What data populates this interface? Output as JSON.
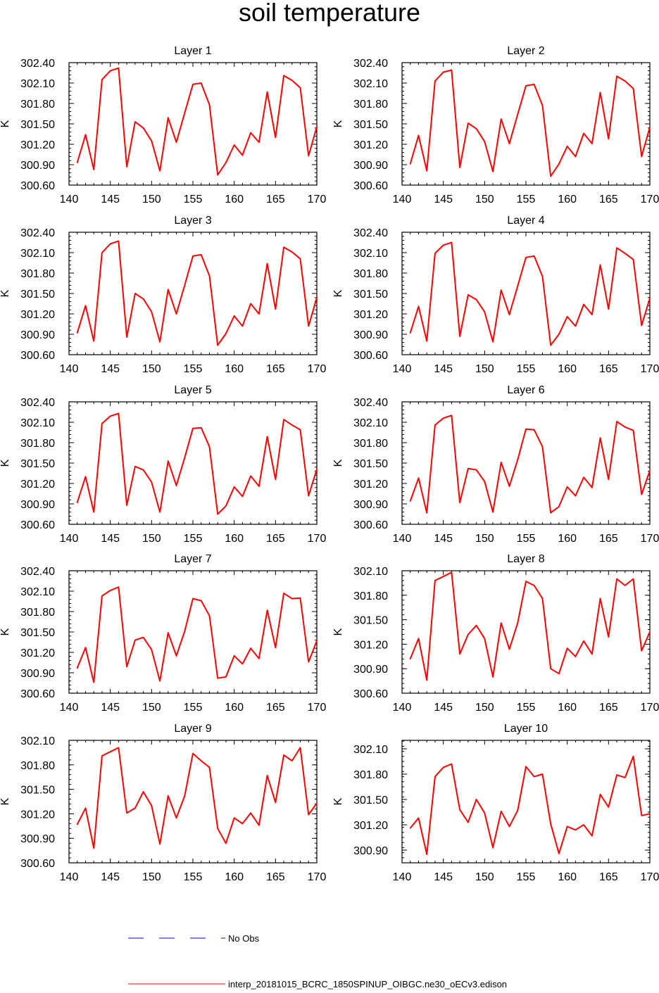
{
  "title": "soil temperature",
  "legend": {
    "no_obs_label": "No Obs",
    "model_label": "interp_20181015_BCRC_1850SPINUP_OIBGC.ne30_oECv3.edison"
  },
  "colors": {
    "model_line": "#ff0000",
    "obs_line": "#0000ff",
    "axes": "#000000"
  },
  "chart_data": [
    {
      "type": "line",
      "title": "Layer 1",
      "ylabel": "K",
      "xlim": [
        140,
        170
      ],
      "ylim": [
        300.6,
        302.4
      ],
      "xticks": [
        "140",
        "145",
        "150",
        "155",
        "160",
        "165",
        "170"
      ],
      "yticks": [
        "300.60",
        "300.90",
        "301.20",
        "301.50",
        "301.80",
        "302.10",
        "302.40"
      ],
      "series": [
        {
          "x": [
            141,
            142,
            143,
            144,
            145,
            146,
            147,
            148,
            149,
            150,
            151,
            152,
            153,
            154,
            155,
            156,
            157,
            158,
            159,
            160,
            161,
            162,
            163,
            164,
            165,
            166,
            167,
            168,
            169,
            170
          ],
          "values": [
            300.93,
            301.34,
            300.83,
            302.15,
            302.28,
            302.32,
            300.87,
            301.53,
            301.44,
            301.25,
            300.81,
            301.59,
            301.23,
            301.66,
            302.08,
            302.1,
            301.78,
            300.75,
            300.93,
            301.19,
            301.04,
            301.37,
            301.23,
            301.97,
            301.3,
            302.21,
            302.14,
            302.03,
            301.03,
            301.46
          ]
        }
      ]
    },
    {
      "type": "line",
      "title": "Layer 2",
      "ylabel": "K",
      "xlim": [
        140,
        170
      ],
      "ylim": [
        300.6,
        302.4
      ],
      "xticks": [
        "140",
        "145",
        "150",
        "155",
        "160",
        "165",
        "170"
      ],
      "yticks": [
        "300.60",
        "300.90",
        "301.20",
        "301.50",
        "301.80",
        "302.10",
        "302.40"
      ],
      "series": [
        {
          "x": [
            141,
            142,
            143,
            144,
            145,
            146,
            147,
            148,
            149,
            150,
            151,
            152,
            153,
            154,
            155,
            156,
            157,
            158,
            159,
            160,
            161,
            162,
            163,
            164,
            165,
            166,
            167,
            168,
            169,
            170
          ],
          "values": [
            300.91,
            301.33,
            300.81,
            302.13,
            302.26,
            302.29,
            300.86,
            301.51,
            301.43,
            301.24,
            300.8,
            301.57,
            301.21,
            301.64,
            302.06,
            302.08,
            301.77,
            300.73,
            300.91,
            301.17,
            301.02,
            301.36,
            301.21,
            301.96,
            301.28,
            302.2,
            302.13,
            302.02,
            301.02,
            301.45
          ]
        }
      ]
    },
    {
      "type": "line",
      "title": "Layer 3",
      "ylabel": "K",
      "xlim": [
        140,
        170
      ],
      "ylim": [
        300.6,
        302.4
      ],
      "xticks": [
        "140",
        "145",
        "150",
        "155",
        "160",
        "165",
        "170"
      ],
      "yticks": [
        "300.60",
        "300.90",
        "301.20",
        "301.50",
        "301.80",
        "302.10",
        "302.40"
      ],
      "series": [
        {
          "x": [
            141,
            142,
            143,
            144,
            145,
            146,
            147,
            148,
            149,
            150,
            151,
            152,
            153,
            154,
            155,
            156,
            157,
            158,
            159,
            160,
            161,
            162,
            163,
            164,
            165,
            166,
            167,
            168,
            169,
            170
          ],
          "values": [
            300.92,
            301.32,
            300.8,
            302.1,
            302.23,
            302.27,
            300.86,
            301.5,
            301.42,
            301.23,
            300.79,
            301.56,
            301.2,
            301.62,
            302.05,
            302.07,
            301.76,
            300.74,
            300.91,
            301.17,
            301.02,
            301.35,
            301.2,
            301.94,
            301.27,
            302.18,
            302.11,
            302.01,
            301.02,
            301.44
          ]
        }
      ]
    },
    {
      "type": "line",
      "title": "Layer 4",
      "ylabel": "K",
      "xlim": [
        140,
        170
      ],
      "ylim": [
        300.6,
        302.4
      ],
      "xticks": [
        "140",
        "145",
        "150",
        "155",
        "160",
        "165",
        "170"
      ],
      "yticks": [
        "300.60",
        "300.90",
        "301.20",
        "301.50",
        "301.80",
        "302.10",
        "302.40"
      ],
      "series": [
        {
          "x": [
            141,
            142,
            143,
            144,
            145,
            146,
            147,
            148,
            149,
            150,
            151,
            152,
            153,
            154,
            155,
            156,
            157,
            158,
            159,
            160,
            161,
            162,
            163,
            164,
            165,
            166,
            167,
            168,
            169,
            170
          ],
          "values": [
            300.92,
            301.31,
            300.8,
            302.09,
            302.21,
            302.25,
            300.87,
            301.48,
            301.41,
            301.23,
            300.79,
            301.55,
            301.19,
            301.61,
            302.03,
            302.05,
            301.75,
            300.74,
            300.9,
            301.16,
            301.02,
            301.34,
            301.19,
            301.92,
            301.27,
            302.17,
            302.09,
            302.0,
            301.03,
            301.43
          ]
        }
      ]
    },
    {
      "type": "line",
      "title": "Layer 5",
      "ylabel": "K",
      "xlim": [
        140,
        170
      ],
      "ylim": [
        300.6,
        302.4
      ],
      "xticks": [
        "140",
        "145",
        "150",
        "155",
        "160",
        "165",
        "170"
      ],
      "yticks": [
        "300.60",
        "300.90",
        "301.20",
        "301.50",
        "301.80",
        "302.10",
        "302.40"
      ],
      "series": [
        {
          "x": [
            141,
            142,
            143,
            144,
            145,
            146,
            147,
            148,
            149,
            150,
            151,
            152,
            153,
            154,
            155,
            156,
            157,
            158,
            159,
            160,
            161,
            162,
            163,
            164,
            165,
            166,
            167,
            168,
            169,
            170
          ],
          "values": [
            300.92,
            301.3,
            300.78,
            302.08,
            302.19,
            302.23,
            300.88,
            301.45,
            301.4,
            301.22,
            300.78,
            301.53,
            301.17,
            301.58,
            302.01,
            302.02,
            301.74,
            300.75,
            300.87,
            301.15,
            301.01,
            301.31,
            301.16,
            301.89,
            301.26,
            302.14,
            302.06,
            301.99,
            301.02,
            301.41
          ]
        }
      ]
    },
    {
      "type": "line",
      "title": "Layer 6",
      "ylabel": "K",
      "xlim": [
        140,
        170
      ],
      "ylim": [
        300.6,
        302.4
      ],
      "xticks": [
        "140",
        "145",
        "150",
        "155",
        "160",
        "165",
        "170"
      ],
      "yticks": [
        "300.60",
        "300.90",
        "301.20",
        "301.50",
        "301.80",
        "302.10",
        "302.40"
      ],
      "series": [
        {
          "x": [
            141,
            142,
            143,
            144,
            145,
            146,
            147,
            148,
            149,
            150,
            151,
            152,
            153,
            154,
            155,
            156,
            157,
            158,
            159,
            160,
            161,
            162,
            163,
            164,
            165,
            166,
            167,
            168,
            169,
            170
          ],
          "values": [
            300.94,
            301.28,
            300.77,
            302.06,
            302.16,
            302.2,
            300.92,
            301.42,
            301.4,
            301.23,
            300.78,
            301.51,
            301.16,
            301.55,
            302.0,
            301.99,
            301.74,
            300.77,
            300.86,
            301.15,
            301.02,
            301.29,
            301.14,
            301.87,
            301.26,
            302.11,
            302.03,
            301.98,
            301.04,
            301.39
          ]
        }
      ]
    },
    {
      "type": "line",
      "title": "Layer 7",
      "ylabel": "K",
      "xlim": [
        140,
        170
      ],
      "ylim": [
        300.6,
        302.4
      ],
      "xticks": [
        "140",
        "145",
        "150",
        "155",
        "160",
        "165",
        "170"
      ],
      "yticks": [
        "300.60",
        "300.90",
        "301.20",
        "301.50",
        "301.80",
        "302.10",
        "302.40"
      ],
      "series": [
        {
          "x": [
            141,
            142,
            143,
            144,
            145,
            146,
            147,
            148,
            149,
            150,
            151,
            152,
            153,
            154,
            155,
            156,
            157,
            158,
            159,
            160,
            161,
            162,
            163,
            164,
            165,
            166,
            167,
            168,
            169,
            170
          ],
          "values": [
            300.97,
            301.27,
            300.76,
            302.03,
            302.11,
            302.16,
            300.99,
            301.38,
            301.42,
            301.24,
            300.78,
            301.49,
            301.15,
            301.51,
            301.99,
            301.96,
            301.74,
            300.82,
            300.84,
            301.15,
            301.03,
            301.26,
            301.11,
            301.82,
            301.27,
            302.07,
            301.99,
            302.0,
            301.06,
            301.37
          ]
        }
      ]
    },
    {
      "type": "line",
      "title": "Layer 8",
      "ylabel": "K",
      "xlim": [
        140,
        170
      ],
      "ylim": [
        300.6,
        302.1
      ],
      "xticks": [
        "140",
        "145",
        "150",
        "155",
        "160",
        "165",
        "170"
      ],
      "yticks": [
        "300.60",
        "300.90",
        "301.20",
        "301.50",
        "301.80",
        "302.10"
      ],
      "series": [
        {
          "x": [
            141,
            142,
            143,
            144,
            145,
            146,
            147,
            148,
            149,
            150,
            151,
            152,
            153,
            154,
            155,
            156,
            157,
            158,
            159,
            160,
            161,
            162,
            163,
            164,
            165,
            166,
            167,
            168,
            169,
            170
          ],
          "values": [
            301.02,
            301.27,
            300.76,
            301.98,
            302.03,
            302.08,
            301.08,
            301.32,
            301.43,
            301.27,
            300.8,
            301.46,
            301.14,
            301.46,
            301.97,
            301.92,
            301.76,
            300.9,
            300.84,
            301.15,
            301.05,
            301.24,
            301.08,
            301.76,
            301.29,
            302.0,
            301.92,
            302.0,
            301.12,
            301.35
          ]
        }
      ]
    },
    {
      "type": "line",
      "title": "Layer 9",
      "ylabel": "K",
      "xlim": [
        140,
        170
      ],
      "ylim": [
        300.6,
        302.1
      ],
      "xticks": [
        "140",
        "145",
        "150",
        "155",
        "160",
        "165",
        "170"
      ],
      "yticks": [
        "300.60",
        "300.90",
        "301.20",
        "301.50",
        "301.80",
        "302.10"
      ],
      "series": [
        {
          "x": [
            141,
            142,
            143,
            144,
            145,
            146,
            147,
            148,
            149,
            150,
            151,
            152,
            153,
            154,
            155,
            156,
            157,
            158,
            159,
            160,
            161,
            162,
            163,
            164,
            165,
            166,
            167,
            168,
            169,
            170
          ],
          "values": [
            301.07,
            301.27,
            300.78,
            301.91,
            301.96,
            302.01,
            301.21,
            301.27,
            301.47,
            301.3,
            300.83,
            301.42,
            301.15,
            301.42,
            301.94,
            301.85,
            301.77,
            301.02,
            300.84,
            301.15,
            301.08,
            301.21,
            301.06,
            301.67,
            301.34,
            301.92,
            301.85,
            302.01,
            301.19,
            301.33
          ]
        }
      ]
    },
    {
      "type": "line",
      "title": "Layer 10",
      "ylabel": "K",
      "xlim": [
        140,
        170
      ],
      "ylim": [
        300.75,
        302.2
      ],
      "xticks": [
        "140",
        "145",
        "150",
        "155",
        "160",
        "165",
        "170"
      ],
      "yticks": [
        "300.90",
        "301.20",
        "301.50",
        "301.80",
        "302.10"
      ],
      "series": [
        {
          "x": [
            141,
            142,
            143,
            144,
            145,
            146,
            147,
            148,
            149,
            150,
            151,
            152,
            153,
            154,
            155,
            156,
            157,
            158,
            159,
            160,
            161,
            162,
            163,
            164,
            165,
            166,
            167,
            168,
            169,
            170
          ],
          "values": [
            301.16,
            301.28,
            300.85,
            301.77,
            301.88,
            301.92,
            301.38,
            301.23,
            301.5,
            301.34,
            300.93,
            301.36,
            301.18,
            301.37,
            301.89,
            301.77,
            301.8,
            301.21,
            300.86,
            301.18,
            301.14,
            301.2,
            301.07,
            301.56,
            301.41,
            301.79,
            301.76,
            302.01,
            301.31,
            301.33
          ]
        }
      ]
    }
  ]
}
